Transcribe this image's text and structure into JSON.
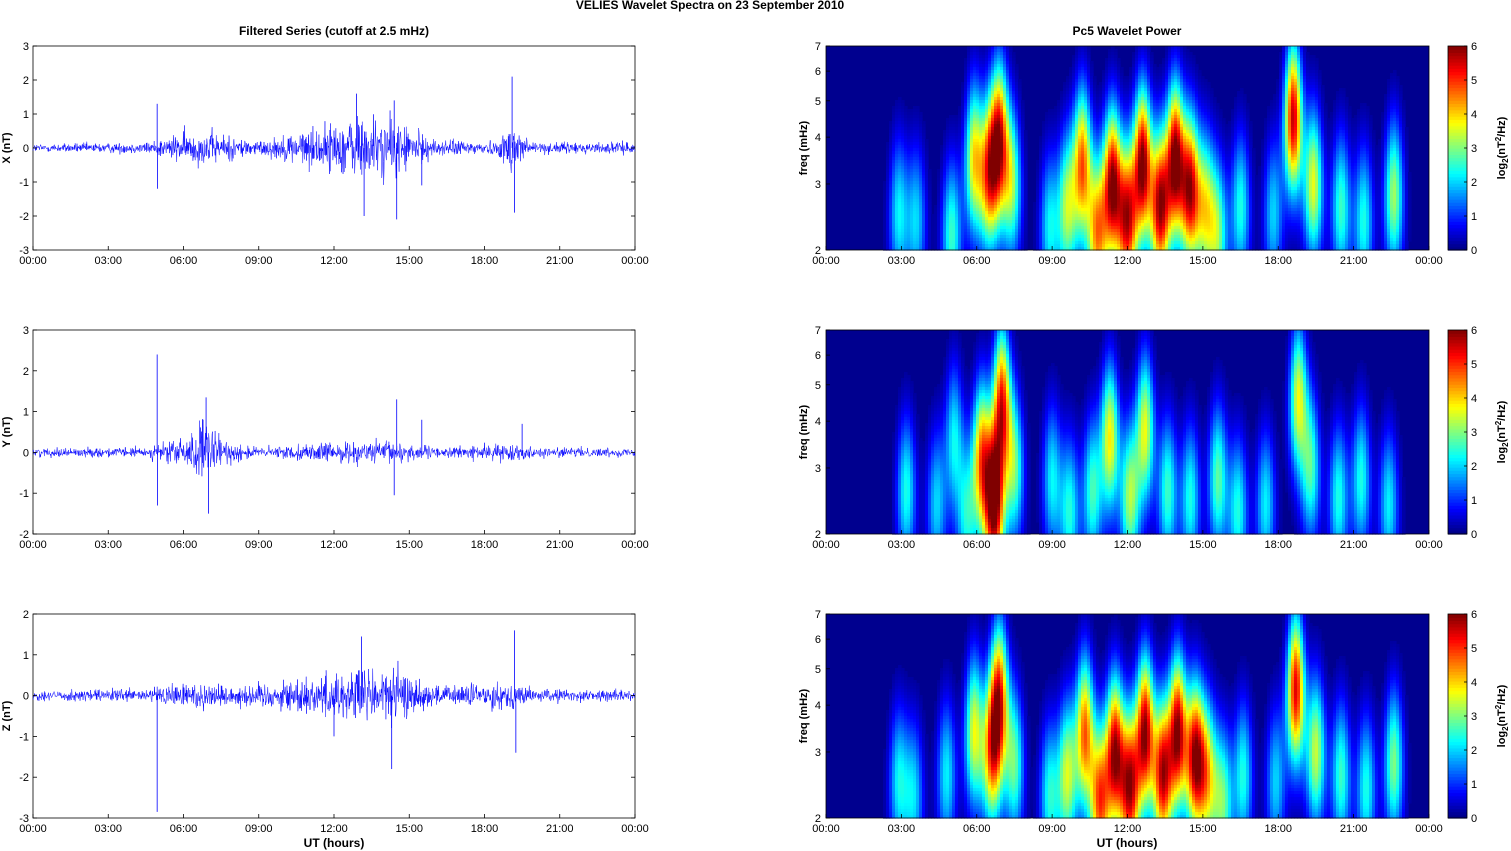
{
  "figure": {
    "title": "VELIES Wavelet Spectra on 23 September 2010"
  },
  "colors": {
    "series": "#0000ff",
    "axes": "#000000",
    "background": "#ffffff"
  },
  "chart_data": [
    {
      "type": "line",
      "title": "Filtered Series (cutoff at 2.5 mHz)",
      "xlabel": "",
      "ylabel": "X (nT)",
      "xlim": [
        "00:00",
        "24:00"
      ],
      "ylim": [
        -3,
        3
      ],
      "xticks": [
        "00:00",
        "03:00",
        "06:00",
        "09:00",
        "12:00",
        "15:00",
        "18:00",
        "21:00",
        "00:00"
      ],
      "yticks": [
        "-3",
        "-2",
        "-1",
        "0",
        "1",
        "2",
        "3"
      ],
      "series": [
        {
          "name": "",
          "color": "#0000ff",
          "noise_envelope_nT": [
            [
              0,
              0.15
            ],
            [
              4.5,
              0.2
            ],
            [
              6,
              0.55
            ],
            [
              7,
              0.6
            ],
            [
              9,
              0.25
            ],
            [
              12,
              0.9
            ],
            [
              13,
              1.2
            ],
            [
              14.5,
              1.0
            ],
            [
              16,
              0.3
            ],
            [
              18.5,
              0.25
            ],
            [
              19.2,
              1.0
            ],
            [
              20,
              0.2
            ],
            [
              24,
              0.2
            ]
          ],
          "spikes": [
            [
              4.95,
              1.3
            ],
            [
              4.96,
              -1.2
            ],
            [
              12.9,
              1.6
            ],
            [
              13.2,
              -2.0
            ],
            [
              14.4,
              1.4
            ],
            [
              14.5,
              -2.1
            ],
            [
              19.1,
              2.1
            ],
            [
              19.2,
              -1.9
            ],
            [
              15.5,
              -1.1
            ]
          ]
        }
      ]
    },
    {
      "type": "line",
      "title": "",
      "xlabel": "",
      "ylabel": "Y (nT)",
      "xlim": [
        "00:00",
        "24:00"
      ],
      "ylim": [
        -2,
        3
      ],
      "xticks": [
        "00:00",
        "03:00",
        "06:00",
        "09:00",
        "12:00",
        "15:00",
        "18:00",
        "21:00",
        "00:00"
      ],
      "yticks": [
        "-2",
        "-1",
        "0",
        "1",
        "2",
        "3"
      ],
      "series": [
        {
          "name": "",
          "color": "#0000ff",
          "noise_envelope_nT": [
            [
              0,
              0.12
            ],
            [
              4.5,
              0.15
            ],
            [
              6.2,
              0.5
            ],
            [
              6.8,
              1.0
            ],
            [
              7.5,
              0.4
            ],
            [
              9,
              0.15
            ],
            [
              12,
              0.3
            ],
            [
              14.5,
              0.35
            ],
            [
              16,
              0.15
            ],
            [
              19,
              0.25
            ],
            [
              20,
              0.15
            ],
            [
              24,
              0.12
            ]
          ],
          "spikes": [
            [
              4.95,
              2.4
            ],
            [
              4.96,
              -1.3
            ],
            [
              6.9,
              1.35
            ],
            [
              7.0,
              -1.5
            ],
            [
              14.5,
              1.3
            ],
            [
              14.4,
              -1.05
            ],
            [
              15.5,
              0.8
            ],
            [
              19.5,
              0.7
            ]
          ]
        }
      ]
    },
    {
      "type": "line",
      "title": "",
      "xlabel": "UT (hours)",
      "ylabel": "Z (nT)",
      "xlim": [
        "00:00",
        "24:00"
      ],
      "ylim": [
        -3,
        2
      ],
      "xticks": [
        "00:00",
        "03:00",
        "06:00",
        "09:00",
        "12:00",
        "15:00",
        "18:00",
        "21:00",
        "00:00"
      ],
      "yticks": [
        "-3",
        "-2",
        "-1",
        "0",
        "1",
        "2"
      ],
      "series": [
        {
          "name": "",
          "color": "#0000ff",
          "noise_envelope_nT": [
            [
              0,
              0.15
            ],
            [
              4.5,
              0.2
            ],
            [
              6.5,
              0.45
            ],
            [
              8,
              0.3
            ],
            [
              10,
              0.45
            ],
            [
              12,
              0.7
            ],
            [
              13.2,
              0.9
            ],
            [
              14.5,
              0.8
            ],
            [
              16,
              0.3
            ],
            [
              19,
              0.4
            ],
            [
              20,
              0.2
            ],
            [
              24,
              0.15
            ]
          ],
          "spikes": [
            [
              4.95,
              -2.85
            ],
            [
              13.1,
              1.45
            ],
            [
              14.3,
              -1.8
            ],
            [
              19.2,
              1.6
            ],
            [
              19.25,
              -1.4
            ],
            [
              12.0,
              -1.0
            ]
          ]
        }
      ]
    },
    {
      "type": "heatmap",
      "title": "Pc5 Wavelet Power",
      "xlabel": "",
      "ylabel": "freq (mHz)",
      "xlim": [
        "00:00",
        "24:00"
      ],
      "ylim": [
        2,
        7
      ],
      "yscale": "log",
      "xticks": [
        "00:00",
        "03:00",
        "06:00",
        "09:00",
        "12:00",
        "15:00",
        "18:00",
        "21:00",
        "00:00"
      ],
      "yticks": [
        "2",
        "3",
        "4",
        "5",
        "6",
        "7"
      ],
      "colorbar": {
        "label": "log2(nT²/Hz)",
        "range": [
          0,
          6
        ],
        "ticks": [
          "0",
          "1",
          "2",
          "3",
          "4",
          "5",
          "6"
        ],
        "colormap": "jet"
      },
      "bursts": [
        [
          2.9,
          2.5,
          2.2
        ],
        [
          3.6,
          2.4,
          2.0
        ],
        [
          5.0,
          2.2,
          2.6
        ],
        [
          5.9,
          3.5,
          3.8
        ],
        [
          6.5,
          3.2,
          4.4
        ],
        [
          6.9,
          4.0,
          5.0
        ],
        [
          7.4,
          3.0,
          3.0
        ],
        [
          8.9,
          2.3,
          2.2
        ],
        [
          9.6,
          2.6,
          3.2
        ],
        [
          10.2,
          3.4,
          4.6
        ],
        [
          10.8,
          2.2,
          4.2
        ],
        [
          11.4,
          3.0,
          5.8
        ],
        [
          12.0,
          2.4,
          5.2
        ],
        [
          12.6,
          3.4,
          6.0
        ],
        [
          13.3,
          2.6,
          5.6
        ],
        [
          13.9,
          3.5,
          6.0
        ],
        [
          14.5,
          2.9,
          5.4
        ],
        [
          15.1,
          2.6,
          3.2
        ],
        [
          15.6,
          2.2,
          2.8
        ],
        [
          16.5,
          2.6,
          2.4
        ],
        [
          17.8,
          2.5,
          2.0
        ],
        [
          18.6,
          4.5,
          5.6
        ],
        [
          19.4,
          3.0,
          3.6
        ],
        [
          20.5,
          2.6,
          2.6
        ],
        [
          21.4,
          2.4,
          2.4
        ],
        [
          22.6,
          2.8,
          3.2
        ]
      ]
    },
    {
      "type": "heatmap",
      "title": "",
      "xlabel": "",
      "ylabel": "freq (mHz)",
      "xlim": [
        "00:00",
        "24:00"
      ],
      "ylim": [
        2,
        7
      ],
      "yscale": "log",
      "xticks": [
        "00:00",
        "03:00",
        "06:00",
        "09:00",
        "12:00",
        "15:00",
        "18:00",
        "21:00",
        "00:00"
      ],
      "yticks": [
        "2",
        "3",
        "4",
        "5",
        "6",
        "7"
      ],
      "colorbar": {
        "label": "log2(nT²/Hz)",
        "range": [
          0,
          6
        ],
        "ticks": [
          "0",
          "1",
          "2",
          "3",
          "4",
          "5",
          "6"
        ],
        "colormap": "jet"
      },
      "bursts": [
        [
          3.2,
          2.6,
          2.4
        ],
        [
          4.4,
          2.4,
          2.0
        ],
        [
          5.1,
          3.6,
          2.2
        ],
        [
          5.6,
          2.2,
          2.2
        ],
        [
          6.2,
          3.2,
          4.4
        ],
        [
          6.7,
          2.4,
          6.0
        ],
        [
          7.0,
          4.5,
          5.0
        ],
        [
          7.5,
          3.0,
          2.8
        ],
        [
          9.0,
          2.8,
          2.2
        ],
        [
          9.7,
          2.3,
          2.4
        ],
        [
          10.6,
          2.6,
          2.6
        ],
        [
          11.3,
          3.6,
          3.8
        ],
        [
          12.1,
          2.5,
          3.2
        ],
        [
          12.7,
          3.8,
          3.6
        ],
        [
          13.6,
          2.6,
          2.6
        ],
        [
          14.5,
          2.5,
          2.4
        ],
        [
          15.6,
          2.8,
          2.8
        ],
        [
          16.4,
          2.3,
          2.4
        ],
        [
          17.5,
          2.4,
          2.2
        ],
        [
          18.8,
          4.6,
          3.6
        ],
        [
          19.3,
          3.0,
          2.6
        ],
        [
          20.4,
          2.5,
          2.4
        ],
        [
          21.3,
          2.8,
          2.4
        ],
        [
          22.4,
          2.4,
          2.2
        ]
      ]
    },
    {
      "type": "heatmap",
      "title": "",
      "xlabel": "UT (hours)",
      "ylabel": "freq (mHz)",
      "xlim": [
        "00:00",
        "24:00"
      ],
      "ylim": [
        2,
        7
      ],
      "yscale": "log",
      "xticks": [
        "00:00",
        "03:00",
        "06:00",
        "09:00",
        "12:00",
        "15:00",
        "18:00",
        "21:00",
        "00:00"
      ],
      "yticks": [
        "2",
        "3",
        "4",
        "5",
        "6",
        "7"
      ],
      "colorbar": {
        "label": "log2(nT²/Hz)",
        "range": [
          0,
          6
        ],
        "ticks": [
          "0",
          "1",
          "2",
          "3",
          "4",
          "5",
          "6"
        ],
        "colormap": "jet"
      },
      "bursts": [
        [
          2.9,
          2.5,
          2.2
        ],
        [
          3.5,
          2.3,
          2.0
        ],
        [
          4.8,
          2.6,
          2.2
        ],
        [
          5.9,
          3.4,
          3.6
        ],
        [
          6.6,
          3.0,
          4.2
        ],
        [
          6.9,
          4.2,
          4.8
        ],
        [
          7.5,
          2.8,
          2.8
        ],
        [
          8.9,
          2.3,
          2.4
        ],
        [
          9.6,
          2.6,
          3.4
        ],
        [
          10.3,
          3.4,
          4.6
        ],
        [
          10.9,
          2.2,
          4.6
        ],
        [
          11.5,
          3.0,
          5.6
        ],
        [
          12.1,
          2.4,
          5.4
        ],
        [
          12.7,
          3.4,
          5.8
        ],
        [
          13.4,
          2.6,
          5.4
        ],
        [
          14.0,
          3.4,
          5.8
        ],
        [
          14.7,
          2.9,
          5.6
        ],
        [
          15.2,
          2.6,
          3.4
        ],
        [
          15.8,
          2.2,
          2.8
        ],
        [
          16.6,
          2.6,
          2.4
        ],
        [
          17.9,
          2.5,
          2.0
        ],
        [
          18.7,
          4.4,
          5.4
        ],
        [
          19.5,
          3.0,
          3.4
        ],
        [
          20.5,
          2.6,
          2.6
        ],
        [
          21.5,
          2.4,
          2.4
        ],
        [
          22.6,
          2.8,
          3.0
        ]
      ]
    }
  ]
}
